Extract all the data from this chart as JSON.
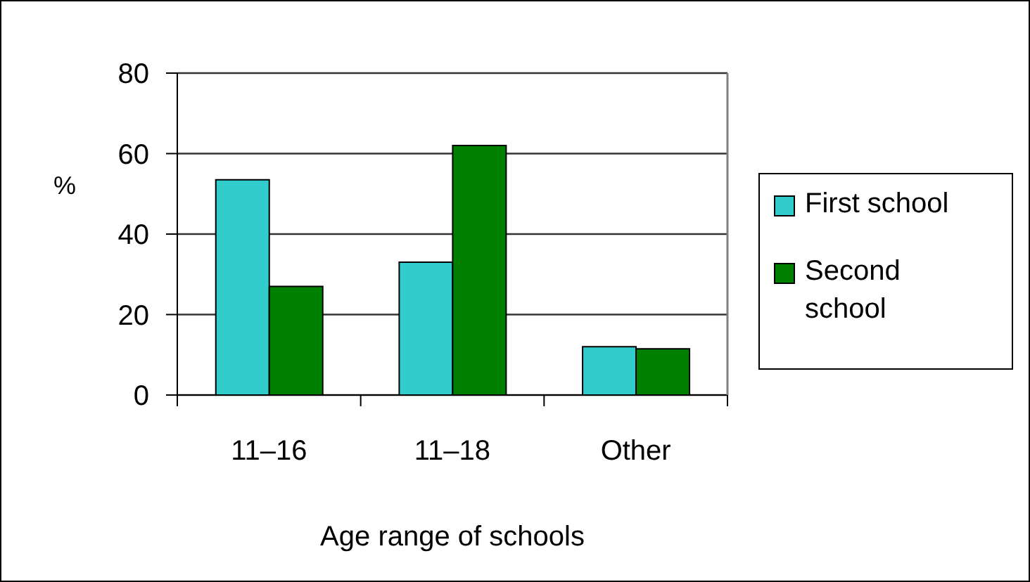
{
  "chart_data": {
    "type": "bar",
    "categories": [
      "11–16",
      "11–18",
      "Other"
    ],
    "series": [
      {
        "name": "First school",
        "color": "#33cccc",
        "values": [
          53.5,
          33,
          12
        ]
      },
      {
        "name": "Second school",
        "color": "#008000",
        "values": [
          27,
          62,
          11.5
        ]
      }
    ],
    "xlabel": "Age range of schools",
    "ylabel": "%",
    "ylim": [
      0,
      80
    ],
    "yticks": [
      0,
      20,
      40,
      60,
      80
    ],
    "grid": "y",
    "legend": "right"
  }
}
